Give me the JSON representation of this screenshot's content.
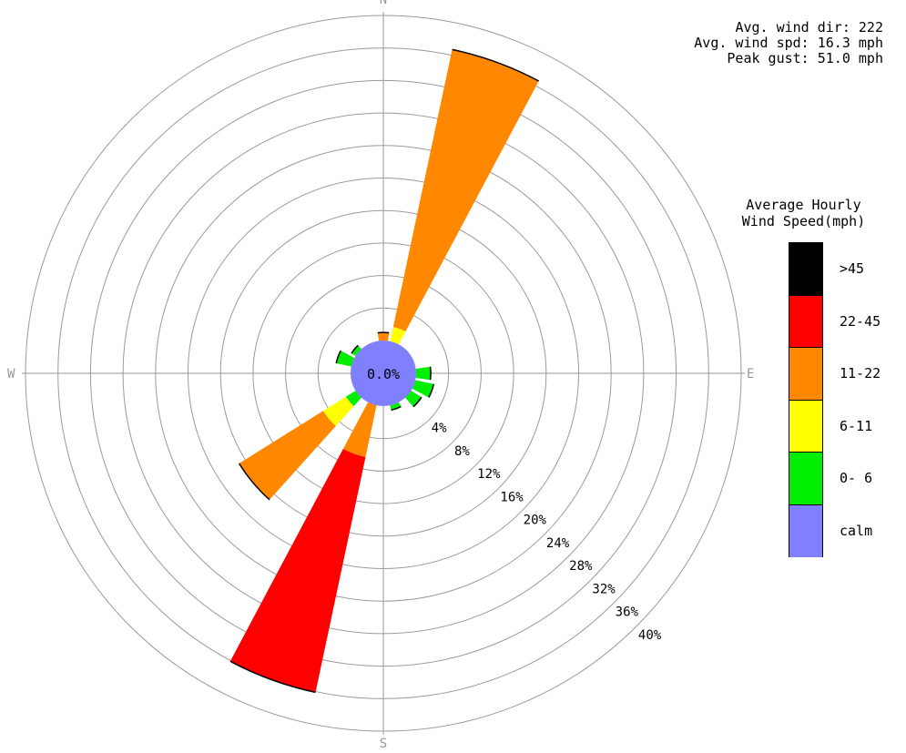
{
  "stats": {
    "avg_dir": "Avg. wind dir: 222",
    "avg_spd": "Avg. wind spd: 16.3 mph",
    "peak_gust": "Peak gust: 51.0 mph"
  },
  "legend": {
    "title_line1": "Average Hourly",
    "title_line2": "Wind Speed(mph)",
    "bins": [
      {
        "label": ">45",
        "color": "#000000"
      },
      {
        "label": "22-45",
        "color": "#ff0000"
      },
      {
        "label": "11-22",
        "color": "#ff8800"
      },
      {
        "label": "6-11",
        "color": "#ffff00"
      },
      {
        "label": "0- 6",
        "color": "#00ee00"
      },
      {
        "label": "calm",
        "color": "#8080ff"
      }
    ]
  },
  "chart_data": {
    "type": "wind-rose",
    "compass": {
      "north": "N",
      "east": "E",
      "south": "S",
      "west": "W"
    },
    "center_label": "0.0%",
    "rings": [
      4,
      8,
      12,
      16,
      20,
      24,
      28,
      32,
      36,
      40
    ],
    "ring_labels": [
      "4%",
      "8%",
      "12%",
      "16%",
      "20%",
      "24%",
      "28%",
      "32%",
      "36%",
      "40%"
    ],
    "max_percent": 40,
    "calm_percent": 0.0,
    "colors": {
      "c0": "#00ee00",
      "c6": "#ffff00",
      "c11": "#ff8800",
      "c22": "#ff0000",
      "c45": "#000000"
    },
    "petals": [
      {
        "direction": 0,
        "segments": [
          {
            "bin": "11-22",
            "from": 0,
            "to": 1.0
          }
        ]
      },
      {
        "direction": 20,
        "segments": [
          {
            "bin": "6-11",
            "from": 0,
            "to": 1.8
          },
          {
            "bin": "11-22",
            "from": 1.8,
            "to": 36.7
          }
        ]
      },
      {
        "direction": 90,
        "segments": [
          {
            "bin": "0- 6",
            "from": 0,
            "to": 1.8
          }
        ]
      },
      {
        "direction": 110,
        "segments": [
          {
            "bin": "0- 6",
            "from": 0,
            "to": 2.3
          }
        ]
      },
      {
        "direction": 130,
        "segments": [
          {
            "bin": "0- 6",
            "from": 0,
            "to": 1.5
          }
        ]
      },
      {
        "direction": 160,
        "segments": [
          {
            "bin": "0- 6",
            "from": 0,
            "to": 0.6
          }
        ]
      },
      {
        "direction": 200,
        "segments": [
          {
            "bin": "11-22",
            "from": 0,
            "to": 6.5
          },
          {
            "bin": "22-45",
            "from": 6.5,
            "to": 36.1
          }
        ]
      },
      {
        "direction": 230,
        "segments": [
          {
            "bin": "0- 6",
            "from": 0,
            "to": 1.4
          },
          {
            "bin": "6-11",
            "from": 1.4,
            "to": 4.7
          },
          {
            "bin": "11-22",
            "from": 4.7,
            "to": 16.9
          }
        ]
      },
      {
        "direction": 290,
        "segments": [
          {
            "bin": "0- 6",
            "from": 0,
            "to": 1.9
          }
        ]
      },
      {
        "direction": 310,
        "segments": [
          {
            "bin": "0- 6",
            "from": 0,
            "to": 0.6
          }
        ]
      }
    ]
  }
}
